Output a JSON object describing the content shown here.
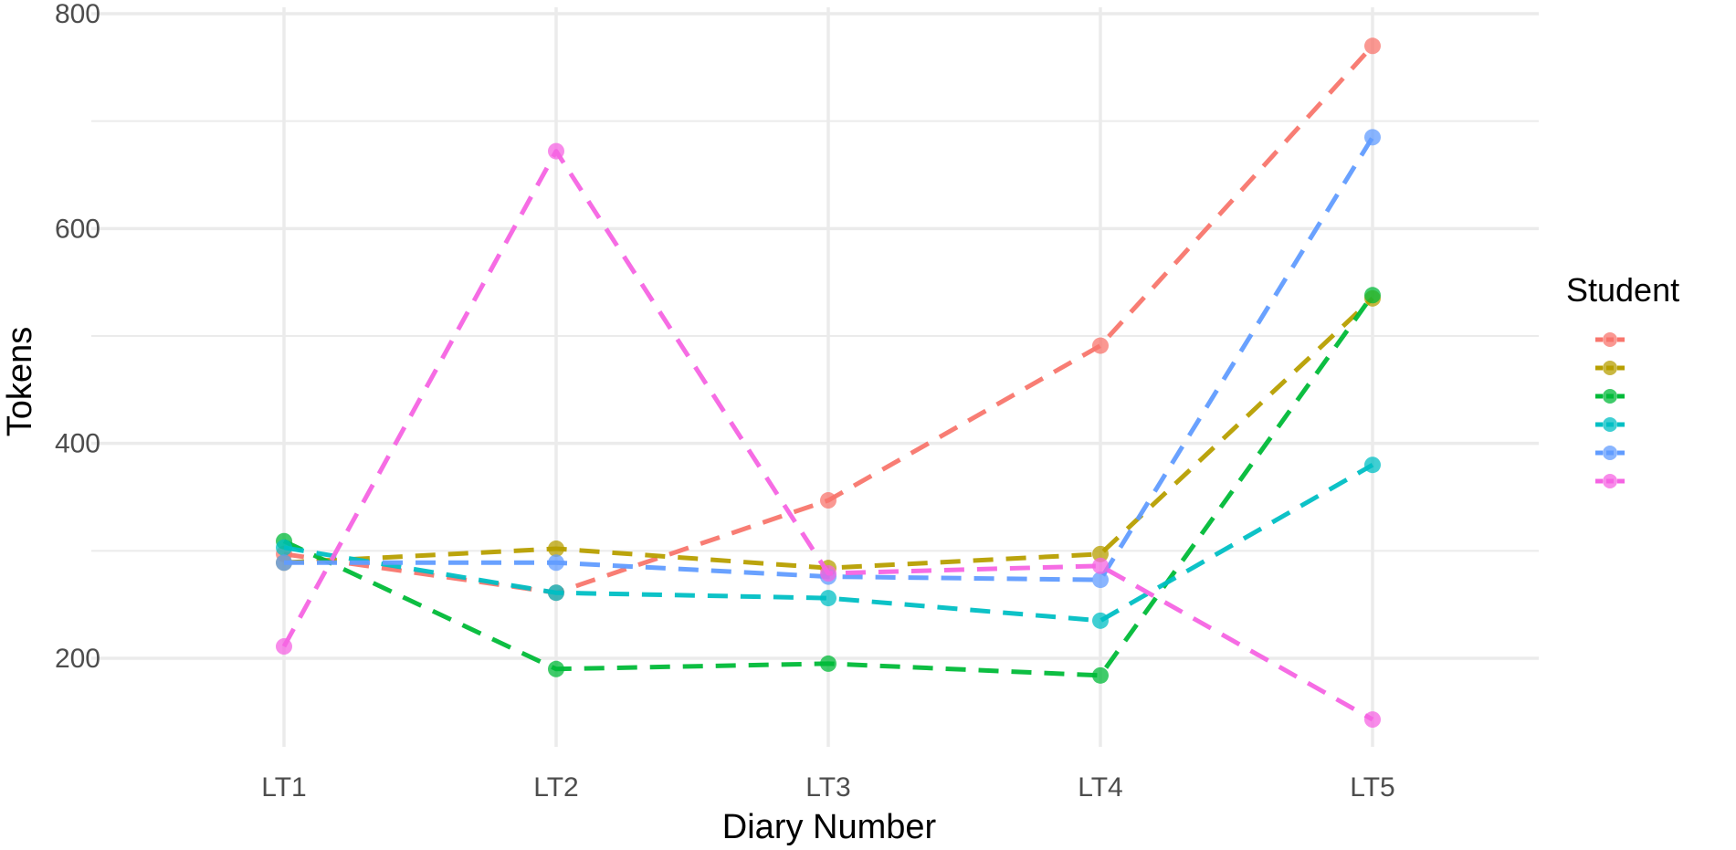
{
  "chart_data": {
    "type": "line",
    "title": "",
    "xlabel": "Diary Number",
    "ylabel": "Tokens",
    "categories": [
      "LT1",
      "LT2",
      "LT3",
      "LT4",
      "LT5"
    ],
    "yticks": [
      200,
      400,
      600,
      800
    ],
    "ylim": [
      115,
      800
    ],
    "grid": true,
    "line_style": "dashed",
    "legend": {
      "title": "Student",
      "position": "right"
    },
    "series": [
      {
        "color": "#F8766D",
        "values": [
          297,
          261,
          347,
          491,
          770
        ]
      },
      {
        "color": "#B79F00",
        "values": [
          289,
          302,
          284,
          297,
          535
        ]
      },
      {
        "color": "#00BA38",
        "values": [
          309,
          190,
          195,
          184,
          538
        ]
      },
      {
        "color": "#00BFC4",
        "values": [
          303,
          261,
          256,
          235,
          380
        ]
      },
      {
        "color": "#619CFF",
        "values": [
          289,
          289,
          276,
          273,
          685
        ]
      },
      {
        "color": "#F564E3",
        "values": [
          211,
          672,
          279,
          286,
          143
        ]
      }
    ]
  }
}
